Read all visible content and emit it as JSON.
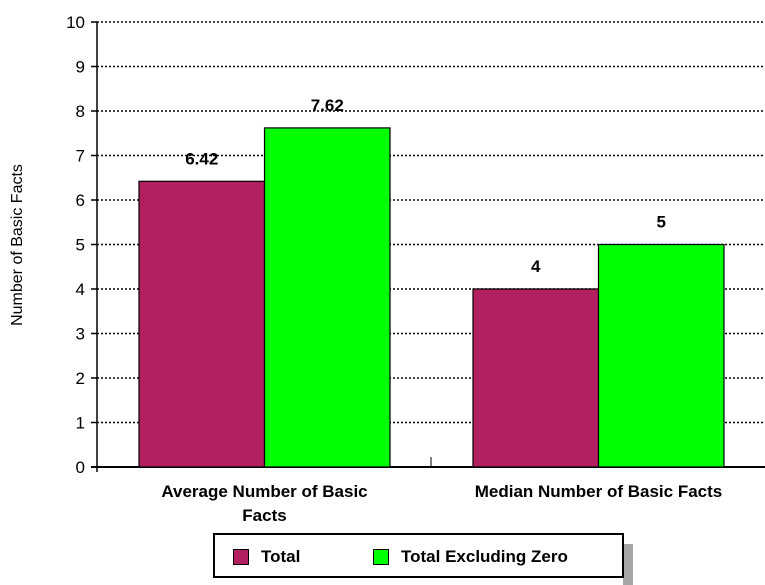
{
  "chart_data": {
    "type": "bar",
    "categories": [
      "Average Number of Basic Facts",
      "Median Number of Basic Facts"
    ],
    "category_label_lines": [
      [
        "Average Number of Basic",
        "Facts"
      ],
      [
        "Median Number of Basic Facts"
      ]
    ],
    "series": [
      {
        "name": "Total",
        "values": [
          6.42,
          4
        ],
        "labels": [
          "6.42",
          "4"
        ],
        "color": "#b22060"
      },
      {
        "name": "Total Excluding Zero",
        "values": [
          7.62,
          5
        ],
        "labels": [
          "7.62",
          "5"
        ],
        "color": "#00ff00"
      }
    ],
    "ylabel": "Number of Basic Facts",
    "ylim": [
      0,
      10
    ],
    "yticks": [
      0,
      1,
      2,
      3,
      4,
      5,
      6,
      7,
      8,
      9,
      10
    ],
    "grid": true,
    "grid_style": "dotted",
    "legend_position": "bottom"
  }
}
